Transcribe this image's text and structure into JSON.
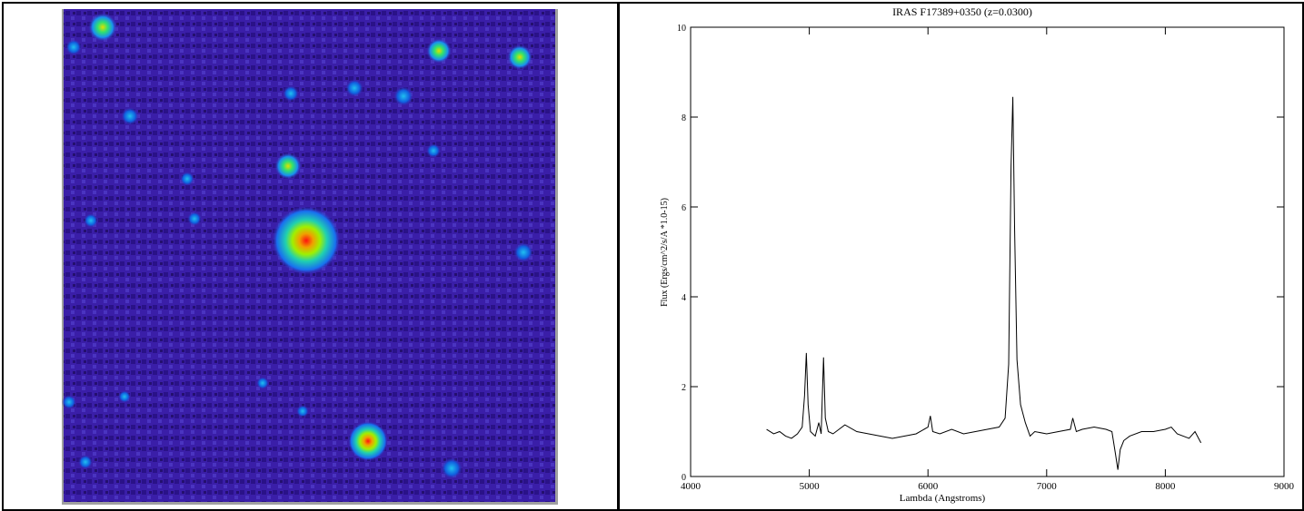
{
  "chart_data": {
    "type": "line",
    "title": "IRAS F17389+0350 (z=0.0300)",
    "x_label": "Lambda (Angstroms)",
    "y_label": "Flux (Ergs/cm^2/s/A *1.0-15)",
    "xlim": [
      4000,
      9000
    ],
    "xticks": [
      4000,
      5000,
      6000,
      7000,
      8000,
      9000
    ],
    "ylim": [
      0,
      10
    ],
    "yticks": [
      0,
      2,
      4,
      6,
      8,
      10
    ],
    "color": "#000000",
    "x": [
      4640,
      4700,
      4750,
      4800,
      4850,
      4900,
      4940,
      4960,
      4975,
      4990,
      5010,
      5050,
      5080,
      5100,
      5120,
      5135,
      5160,
      5200,
      5300,
      5400,
      5500,
      5600,
      5700,
      5800,
      5900,
      6000,
      6020,
      6040,
      6100,
      6200,
      6300,
      6400,
      6500,
      6600,
      6650,
      6680,
      6700,
      6715,
      6730,
      6750,
      6780,
      6820,
      6860,
      6900,
      7000,
      7100,
      7200,
      7220,
      7250,
      7300,
      7400,
      7500,
      7550,
      7580,
      7600,
      7620,
      7650,
      7700,
      7800,
      7900,
      8000,
      8050,
      8100,
      8200,
      8250,
      8300
    ],
    "values": [
      1.05,
      0.95,
      1.0,
      0.9,
      0.85,
      0.95,
      1.1,
      1.8,
      2.75,
      1.6,
      1.0,
      0.9,
      1.2,
      0.95,
      2.65,
      1.3,
      1.0,
      0.95,
      1.15,
      1.0,
      0.95,
      0.9,
      0.85,
      0.9,
      0.95,
      1.1,
      1.35,
      1.0,
      0.95,
      1.05,
      0.95,
      1.0,
      1.05,
      1.1,
      1.3,
      2.5,
      6.9,
      8.45,
      5.5,
      2.6,
      1.6,
      1.2,
      0.9,
      1.0,
      0.95,
      1.0,
      1.05,
      1.3,
      1.0,
      1.05,
      1.1,
      1.05,
      1.0,
      0.5,
      0.15,
      0.6,
      0.8,
      0.9,
      1.0,
      1.0,
      1.05,
      1.1,
      0.95,
      0.85,
      1.0,
      0.75
    ]
  }
}
